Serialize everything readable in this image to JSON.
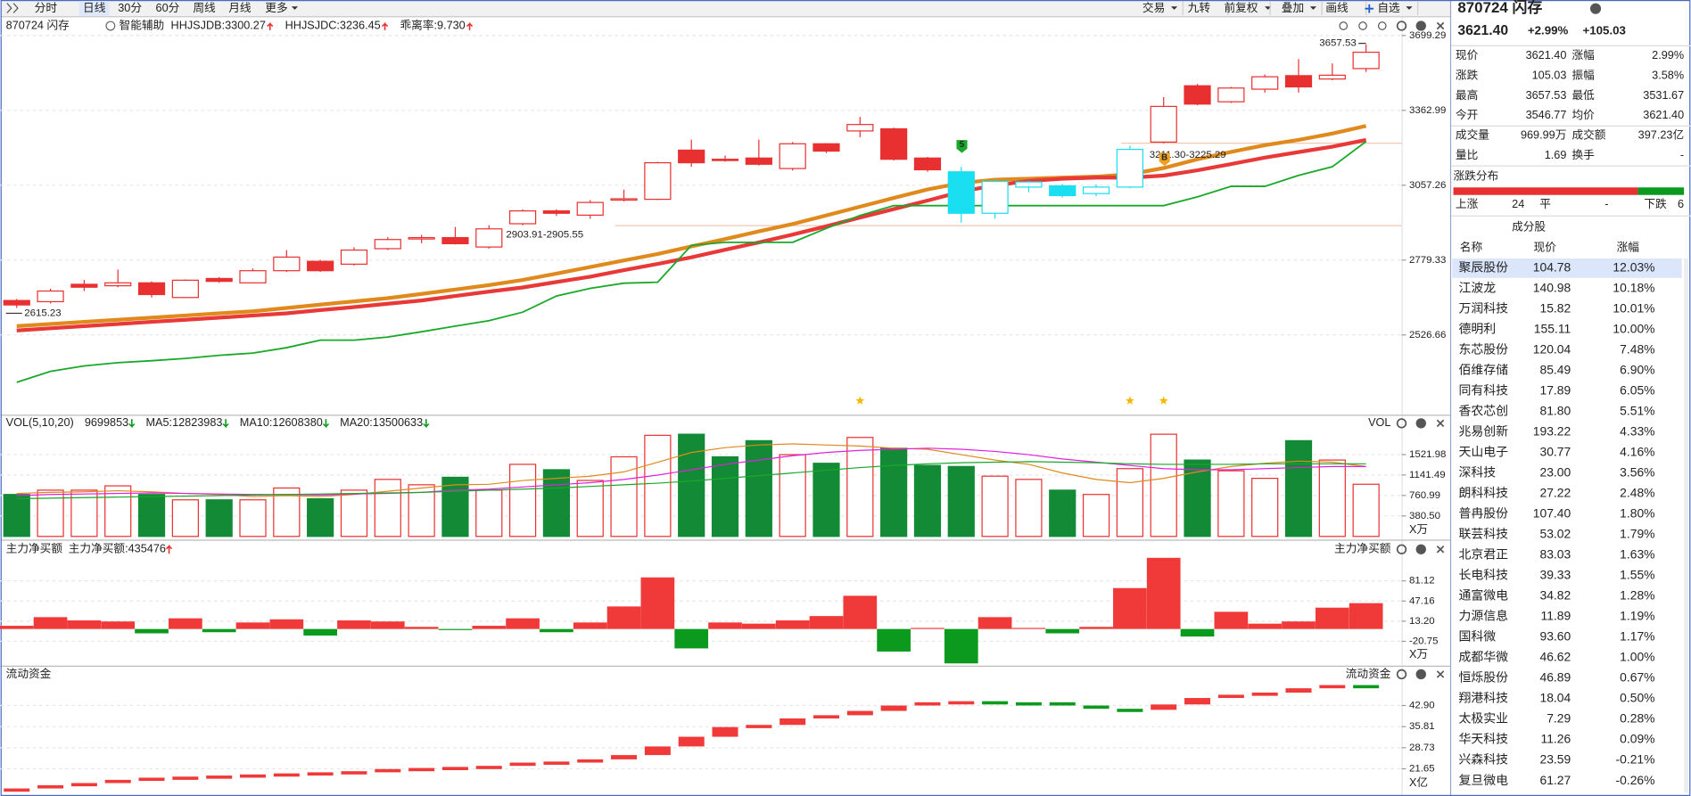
{
  "toolbar": {
    "periods": [
      "分时",
      "日线",
      "30分",
      "60分",
      "周线",
      "月线",
      "更多"
    ],
    "active": 1,
    "tools": [
      "交易",
      "九转",
      "前复权",
      "叠加",
      "画线",
      "自选"
    ]
  },
  "chart_data": [
    {
      "type": "candlestick",
      "title": "870724 闪存",
      "assistant": "智能辅助",
      "indicators": [
        {
          "label": "HHJSJDB:3300.27",
          "color": "#e08a1e"
        },
        {
          "label": "HHJSJDC:3236.45",
          "color": "#e83030"
        },
        {
          "label": "乖离率:9.730",
          "color": "#e08a1e"
        }
      ],
      "log": true,
      "ylim": [
        2289,
        3776
      ],
      "yticks": [
        2526.66,
        2779.33,
        3057.26,
        3362.99,
        3699.29
      ],
      "grid": true,
      "open": [
        2640,
        2636,
        2695,
        2690,
        2700,
        2650,
        2715,
        2700,
        2742,
        2775,
        2765,
        2820,
        2855,
        2860,
        2826,
        2911,
        2959,
        2943,
        3000,
        3003,
        3197,
        3160,
        3165,
        3123,
        3223,
        3276,
        3285,
        3165,
        3110,
        2950,
        3050,
        3055,
        3025,
        3050,
        3230,
        3470,
        3400,
        3455,
        3515,
        3500,
        3546.77
      ],
      "high": [
        2645,
        2680,
        2710,
        2746,
        2705,
        2712,
        2720,
        2750,
        2815,
        2780,
        2825,
        2862,
        2870,
        2899,
        2905.55,
        2965,
        2965,
        3000,
        3040,
        3150,
        3240,
        3175,
        3240,
        3230,
        3225,
        3335,
        3290,
        3170,
        3130,
        3080,
        3075,
        3062,
        3060,
        3215,
        3420,
        3478,
        3465,
        3520,
        3590,
        3570,
        3657.53
      ],
      "low": [
        2615.23,
        2630,
        2672,
        2685,
        2650,
        2648,
        2700,
        2698,
        2738,
        2738,
        2760,
        2815,
        2840,
        2835,
        2820,
        2905,
        2940,
        2930,
        2995,
        3000,
        3130,
        3150,
        3135,
        3115,
        3185,
        3250,
        3155,
        3110,
        2915,
        2930,
        3030,
        3010,
        3015,
        3045,
        3225,
        3385,
        3395,
        3440,
        3440,
        3495,
        3531.67
      ],
      "close": [
        2625,
        2672,
        2685,
        2700,
        2660,
        2709,
        2705,
        2742,
        2790,
        2742,
        2815,
        2853,
        2860,
        2838,
        2892,
        2959,
        2950,
        2991,
        3005,
        3146,
        3146,
        3155,
        3140,
        3223,
        3193,
        3303,
        3160,
        3118,
        2950,
        3072,
        3070,
        3017,
        3050,
        3200,
        3380,
        3390,
        3460,
        3510,
        3465,
        3517,
        3621.4
      ],
      "candle_colors": [
        "#e83030",
        "#e83030",
        "#e83030",
        "#e83030",
        "#e83030",
        "#e83030",
        "#e83030",
        "#e83030",
        "#e83030",
        "#e83030",
        "#e83030",
        "#e83030",
        "#e83030",
        "#e83030",
        "#e83030",
        "#e83030",
        "#e83030",
        "#e83030",
        "#e83030",
        "#e83030",
        "#e83030",
        "#e83030",
        "#e83030",
        "#e83030",
        "#e83030",
        "#e83030",
        "#e83030",
        "#e83030",
        "#19dff0",
        "#19dff0",
        "#19dff0",
        "#19dff0",
        "#19dff0",
        "#19dff0",
        "#e83030",
        "#e83030",
        "#e83030",
        "#e83030",
        "#e83030",
        "#e83030",
        "#e83030"
      ],
      "series": [
        {
          "name": "HHJSJDB",
          "color": "#e08a1e",
          "width": 3.5,
          "values": [
            2555,
            2562,
            2569,
            2576,
            2583,
            2590,
            2597,
            2604,
            2615,
            2626,
            2637,
            2648,
            2662,
            2677,
            2692,
            2710,
            2732,
            2755,
            2778,
            2801,
            2828,
            2855,
            2883,
            2910,
            2942,
            2975,
            3008,
            3041,
            3066,
            3079,
            3083,
            3087,
            3091,
            3100,
            3125,
            3160,
            3190,
            3217,
            3239,
            3265,
            3297
          ]
        },
        {
          "name": "HHJSJDC",
          "color": "#e83838",
          "width": 3.5,
          "values": [
            2541,
            2548,
            2555,
            2562,
            2569,
            2576,
            2583,
            2590,
            2597,
            2608,
            2618,
            2629,
            2640,
            2655,
            2670,
            2684,
            2703,
            2721,
            2744,
            2766,
            2789,
            2816,
            2843,
            2871,
            2902,
            2934,
            2966,
            2998,
            3032,
            3057,
            3074,
            3083,
            3087,
            3087,
            3095,
            3116,
            3141,
            3167,
            3189,
            3211,
            3239
          ]
        },
        {
          "name": "support",
          "color": "#1aa82a",
          "width": 1.5,
          "values": [
            2379,
            2412,
            2429,
            2439,
            2445,
            2452,
            2462,
            2469,
            2486,
            2510,
            2510,
            2520,
            2537,
            2555,
            2573,
            2601,
            2655,
            2681,
            2699,
            2702,
            2832,
            2843,
            2843,
            2843,
            2894,
            2942,
            2979,
            2979,
            2979,
            2979,
            2979,
            2979,
            2979,
            2979,
            2979,
            3012,
            3053,
            3053,
            3096,
            3130,
            3232
          ]
        }
      ],
      "annotations": [
        "2903.91-2905.55",
        "3211.30-3225.29"
      ],
      "signals": [
        {
          "text": "5",
          "color": "#1aa82a"
        },
        {
          "text": "B",
          "color": "#f0a020"
        }
      ]
    },
    {
      "type": "volume",
      "legend": [
        {
          "label": "VOL(5,10,20)",
          "color": "#333333"
        },
        {
          "label": "9699853",
          "color": "#000000"
        },
        {
          "label": "MA5:12823983",
          "color": "#e08a1e"
        },
        {
          "label": "MA10:12608380",
          "color": "#e020e0"
        },
        {
          "label": "MA20:13500633",
          "color": "#1aa82a"
        }
      ],
      "right_label": "VOL",
      "unit": "X万",
      "ylim": [
        0,
        2243
      ],
      "yticks": [
        {
          "value": 380.5,
          "label": "380.50"
        },
        760.99,
        1141.49,
        1521.98
      ],
      "values": [
        780,
        860,
        860,
        940,
        780,
        680,
        680,
        680,
        900,
        700,
        860,
        1060,
        960,
        1100,
        860,
        1340,
        1240,
        1040,
        1480,
        1880,
        1900,
        1480,
        1780,
        1520,
        1360,
        1840,
        1640,
        1320,
        1300,
        1120,
        1060,
        860,
        780,
        1260,
        1900,
        1420,
        1220,
        1080,
        1780,
        1420,
        969.99
      ],
      "colors": [
        "#138a36",
        "#e83030",
        "#e83030",
        "#e83030",
        "#138a36",
        "#e83030",
        "#138a36",
        "#e83030",
        "#e83030",
        "#138a36",
        "#e83030",
        "#e83030",
        "#e83030",
        "#138a36",
        "#e83030",
        "#e83030",
        "#138a36",
        "#e83030",
        "#e83030",
        "#e83030",
        "#138a36",
        "#138a36",
        "#138a36",
        "#e83030",
        "#138a36",
        "#e83030",
        "#138a36",
        "#138a36",
        "#138a36",
        "#e83030",
        "#e83030",
        "#138a36",
        "#e83030",
        "#e83030",
        "#e83030",
        "#138a36",
        "#e83030",
        "#e83030",
        "#138a36",
        "#e83030",
        "#e83030"
      ],
      "series": [
        {
          "name": "MA5",
          "color": "#e08a1e",
          "values": [
            800,
            820,
            830,
            850,
            830,
            800,
            780,
            740,
            760,
            740,
            780,
            840,
            900,
            960,
            970,
            1040,
            1080,
            1120,
            1200,
            1380,
            1560,
            1650,
            1700,
            1720,
            1700,
            1680,
            1640,
            1620,
            1520,
            1420,
            1340,
            1180,
            1060,
            1000,
            1080,
            1200,
            1300,
            1360,
            1400,
            1380,
            1300
          ]
        },
        {
          "name": "MA10",
          "color": "#e020e0",
          "values": [
            760,
            780,
            790,
            800,
            810,
            800,
            790,
            780,
            780,
            770,
            790,
            800,
            820,
            860,
            880,
            920,
            960,
            1000,
            1060,
            1140,
            1240,
            1340,
            1420,
            1500,
            1560,
            1600,
            1620,
            1640,
            1620,
            1580,
            1520,
            1440,
            1380,
            1320,
            1260,
            1240,
            1240,
            1260,
            1280,
            1300,
            1300
          ]
        },
        {
          "name": "MA20",
          "color": "#1aa82a",
          "values": [
            700,
            710,
            720,
            730,
            740,
            750,
            760,
            770,
            780,
            790,
            800,
            810,
            820,
            840,
            860,
            880,
            900,
            930,
            960,
            990,
            1030,
            1080,
            1130,
            1180,
            1230,
            1280,
            1320,
            1350,
            1370,
            1380,
            1390,
            1380,
            1370,
            1350,
            1340,
            1340,
            1340,
            1350,
            1350,
            1350,
            1350
          ]
        }
      ]
    },
    {
      "type": "bar",
      "title": "主力净买额",
      "legend": "主力净买额:435476",
      "right_label": "主力净买额",
      "unit": "X万",
      "ylim": [
        -60,
        147
      ],
      "yticks": [
        -20.75,
        {
          "value": 13.2,
          "label": "13.20"
        },
        47.16,
        81.12
      ],
      "pos_color": "#f03a3a",
      "neg_color": "#0b9a1e",
      "values": [
        5.4,
        20,
        14.5,
        12.7,
        -7.3,
        18,
        -5.4,
        11,
        16.3,
        -11,
        14.5,
        12.7,
        3.6,
        -1.8,
        5.4,
        18,
        -5.4,
        11,
        38,
        87,
        -32.7,
        11,
        9,
        14.5,
        21.8,
        56,
        -38,
        1.8,
        -58,
        20,
        1.8,
        -7.3,
        3.6,
        69,
        120,
        -12.7,
        29,
        9,
        12.7,
        36,
        43.55
      ]
    },
    {
      "type": "waterfall",
      "title": "流动资金",
      "right_label": "流动资金",
      "unit": "X亿",
      "ylim": [
        13.24,
        55.56
      ],
      "yticks": [
        21.65,
        28.73,
        35.81,
        {
          "value": 42.9,
          "label": "42.90"
        }
      ],
      "pos_color": "#f03a3a",
      "neg_color": "#0b9a1e",
      "values": [
        15.05,
        16.14,
        16.86,
        17.94,
        18.67,
        19.03,
        19.39,
        19.75,
        20.11,
        20.47,
        20.84,
        21.56,
        21.92,
        22.28,
        22.64,
        23.73,
        24.09,
        24.82,
        26.26,
        29.16,
        32.41,
        35.67,
        36.39,
        38.56,
        39.64,
        41.09,
        42.9,
        43.99,
        44.35,
        43.99,
        43.99,
        42.9,
        41.81,
        41.45,
        43.26,
        45.43,
        46.52,
        47.24,
        48.69,
        49.77,
        49.77
      ]
    }
  ],
  "quote": {
    "code": "870724 闪存",
    "price": "3621.40",
    "change_pct": "+2.99%",
    "change": "+105.03",
    "price_color": "#e83030",
    "rows": [
      [
        "现价",
        "3621.40",
        "涨幅",
        "2.99%"
      ],
      [
        "涨跌",
        "105.03",
        "振幅",
        "3.58%"
      ],
      [
        "最高",
        "3657.53",
        "最低",
        "3531.67"
      ],
      [
        "今开",
        "3546.77",
        "均价",
        "3621.40"
      ],
      [
        "成交量",
        "969.99万",
        "成交额",
        "397.23亿"
      ],
      [
        "量比",
        "1.69",
        "换手",
        "-"
      ]
    ],
    "row_colors": [
      [
        "#e83030",
        "#e83030"
      ],
      [
        "#e83030",
        "#222222"
      ],
      [
        "#e83030",
        "#e83030"
      ],
      [
        "#e83030",
        "#e83030"
      ],
      [
        "#222222",
        "#222222"
      ],
      [
        "#222222",
        "#222222"
      ]
    ],
    "dist_title": "涨跌分布",
    "up_label": "上涨",
    "up": 24,
    "flat_label": "平",
    "flat": "-",
    "down_label": "下跌",
    "down": 6
  },
  "constituents": {
    "title": "成分股",
    "header": [
      "名称",
      "现价",
      "涨幅"
    ],
    "selected": 0,
    "rows": [
      {
        "name": "聚辰股份",
        "price": "104.78",
        "change": "12.03%",
        "name_color": "#1f5fd0",
        "value_color": "#e83030"
      },
      {
        "name": "江波龙",
        "price": "140.98",
        "change": "10.18%",
        "name_color": "#1f5fd0",
        "value_color": "#e83030"
      },
      {
        "name": "万润科技",
        "price": "15.82",
        "change": "10.01%",
        "name_color": "#1f5fd0",
        "value_color": "#e83030"
      },
      {
        "name": "德明利",
        "price": "155.11",
        "change": "10.00%",
        "name_color": "#1f5fd0",
        "value_color": "#e83030"
      },
      {
        "name": "东芯股份",
        "price": "120.04",
        "change": "7.48%",
        "name_color": "#1f5fd0",
        "value_color": "#e83030"
      },
      {
        "name": "佰维存储",
        "price": "85.49",
        "change": "6.90%",
        "name_color": "#1f5fd0",
        "value_color": "#e83030"
      },
      {
        "name": "同有科技",
        "price": "17.89",
        "change": "6.05%",
        "name_color": "#1f5fd0",
        "value_color": "#e83030"
      },
      {
        "name": "香农芯创",
        "price": "81.80",
        "change": "5.51%",
        "name_color": "#1f5fd0",
        "value_color": "#e83030"
      },
      {
        "name": "兆易创新",
        "price": "193.22",
        "change": "4.33%",
        "name_color": "#1f5fd0",
        "value_color": "#e83030"
      },
      {
        "name": "天山电子",
        "price": "30.77",
        "change": "4.16%",
        "name_color": "#222222",
        "value_color": "#e83030"
      },
      {
        "name": "深科技",
        "price": "23.00",
        "change": "3.56%",
        "name_color": "#1f5fd0",
        "value_color": "#e83030"
      },
      {
        "name": "朗科科技",
        "price": "27.22",
        "change": "2.48%",
        "name_color": "#1f5fd0",
        "value_color": "#e83030"
      },
      {
        "name": "普冉股份",
        "price": "107.40",
        "change": "1.80%",
        "name_color": "#1f5fd0",
        "value_color": "#e83030"
      },
      {
        "name": "联芸科技",
        "price": "53.02",
        "change": "1.79%",
        "name_color": "#1f5fd0",
        "value_color": "#e83030"
      },
      {
        "name": "北京君正",
        "price": "83.03",
        "change": "1.63%",
        "name_color": "#1f5fd0",
        "value_color": "#e83030"
      },
      {
        "name": "长电科技",
        "price": "39.33",
        "change": "1.55%",
        "name_color": "#222222",
        "value_color": "#e83030"
      },
      {
        "name": "通富微电",
        "price": "34.82",
        "change": "1.28%",
        "name_color": "#222222",
        "value_color": "#e83030"
      },
      {
        "name": "力源信息",
        "price": "11.89",
        "change": "1.19%",
        "name_color": "#222222",
        "value_color": "#e83030"
      },
      {
        "name": "国科微",
        "price": "93.60",
        "change": "1.17%",
        "name_color": "#222222",
        "value_color": "#e83030"
      },
      {
        "name": "成都华微",
        "price": "46.62",
        "change": "1.00%",
        "name_color": "#222222",
        "value_color": "#e83030"
      },
      {
        "name": "恒烁股份",
        "price": "46.89",
        "change": "0.67%",
        "name_color": "#1f5fd0",
        "value_color": "#e83030"
      },
      {
        "name": "翔港科技",
        "price": "18.04",
        "change": "0.50%",
        "name_color": "#222222",
        "value_color": "#e83030"
      },
      {
        "name": "太极实业",
        "price": "7.29",
        "change": "0.28%",
        "name_color": "#222222",
        "value_color": "#e83030"
      },
      {
        "name": "华天科技",
        "price": "11.26",
        "change": "0.09%",
        "name_color": "#222222",
        "value_color": "#e83030"
      },
      {
        "name": "兴森科技",
        "price": "23.59",
        "change": "-0.21%",
        "name_color": "#1f5fd0",
        "value_color": "#0b9a1e"
      },
      {
        "name": "复旦微电",
        "price": "61.27",
        "change": "-0.26%",
        "name_color": "#1f5fd0",
        "value_color": "#0b9a1e"
      }
    ]
  }
}
